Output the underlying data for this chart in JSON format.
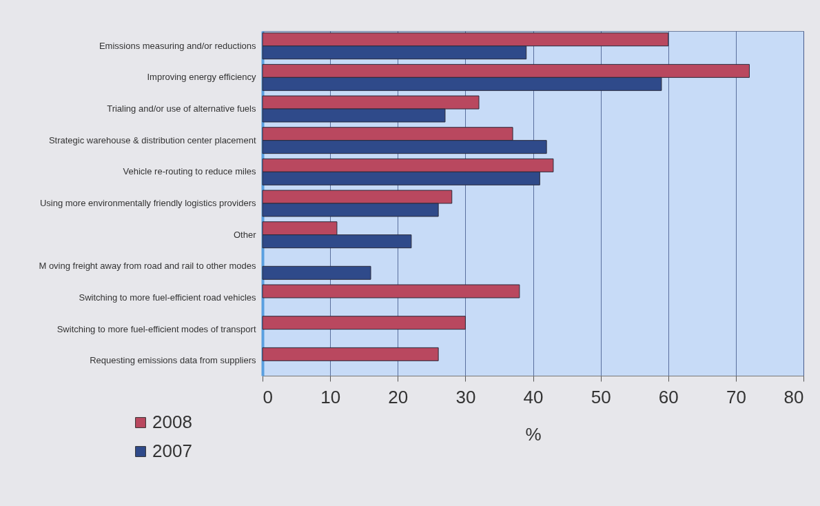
{
  "chart_data": {
    "type": "bar",
    "orientation": "horizontal",
    "categories": [
      "Emissions measuring and/or reductions",
      "Improving energy efficiency",
      "Trialing and/or use of alternative fuels",
      "Strategic warehouse & distribution center placement",
      "Vehicle re-routing to reduce miles",
      "Using more environmentally friendly logistics providers",
      "Other",
      "M oving freight away from road and rail to other modes",
      "Switching to more fuel-efficient road vehicles",
      "Switching to more fuel-efficient modes of transport",
      "Requesting emissions data from suppliers"
    ],
    "series": [
      {
        "name": "2008",
        "color": "#b9485f",
        "values": [
          60,
          72,
          32,
          37,
          43,
          28,
          11,
          null,
          38,
          30,
          26
        ]
      },
      {
        "name": "2007",
        "color": "#2f4a8a",
        "values": [
          39,
          59,
          27,
          42,
          41,
          26,
          22,
          16,
          null,
          null,
          null
        ]
      }
    ],
    "xlim": [
      0,
      80
    ],
    "xticks": [
      0,
      10,
      20,
      30,
      40,
      50,
      60,
      70,
      80
    ],
    "xlabel": "%",
    "grid": "x",
    "legend": "bottom left"
  }
}
